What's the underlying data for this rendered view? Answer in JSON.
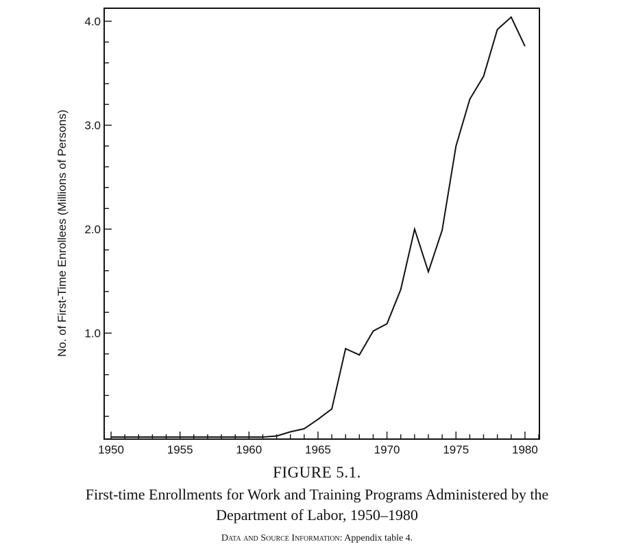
{
  "chart_data": {
    "type": "line",
    "title": "First-time Enrollments for Work and Training Programs Administered by the Department of Labor, 1950–1980",
    "xlabel": "",
    "ylabel": "No. of First-Time Enrollees (Millions of Persons)",
    "xlim": [
      1950,
      1981
    ],
    "ylim": [
      0,
      4.1
    ],
    "x_ticks": [
      1950,
      1955,
      1960,
      1965,
      1970,
      1975,
      1980
    ],
    "x_tick_labels": [
      "1950",
      "1955",
      "1960",
      "1965",
      "1970",
      "1975",
      "1980"
    ],
    "y_ticks": [
      1.0,
      2.0,
      3.0,
      4.0
    ],
    "y_tick_labels": [
      "1.0",
      "2.0",
      "3.0",
      "4.0"
    ],
    "grid": false,
    "series": [
      {
        "x": [
          1950,
          1951,
          1952,
          1953,
          1954,
          1955,
          1956,
          1957,
          1958,
          1959,
          1960,
          1961,
          1962,
          1963,
          1964,
          1965,
          1966,
          1967,
          1968,
          1969,
          1970,
          1971,
          1972,
          1973,
          1974,
          1975,
          1976,
          1977,
          1978,
          1979,
          1980
        ],
        "y": [
          0,
          0,
          0,
          0,
          0,
          0,
          0,
          0,
          0,
          0,
          0,
          0,
          0.01,
          0.05,
          0.08,
          0.17,
          0.27,
          0.85,
          0.79,
          1.02,
          1.09,
          1.42,
          2.0,
          1.59,
          1.99,
          2.8,
          3.25,
          3.47,
          3.92,
          4.04,
          3.76
        ]
      }
    ]
  },
  "caption": {
    "figure_number": "FIGURE 5.1.",
    "title_line1": "First-time Enrollments for Work and Training Programs Administered by the",
    "title_line2": "Department of Labor, 1950–1980",
    "source_label": "Data and Source Information:",
    "source_text": "Appendix table 4."
  }
}
